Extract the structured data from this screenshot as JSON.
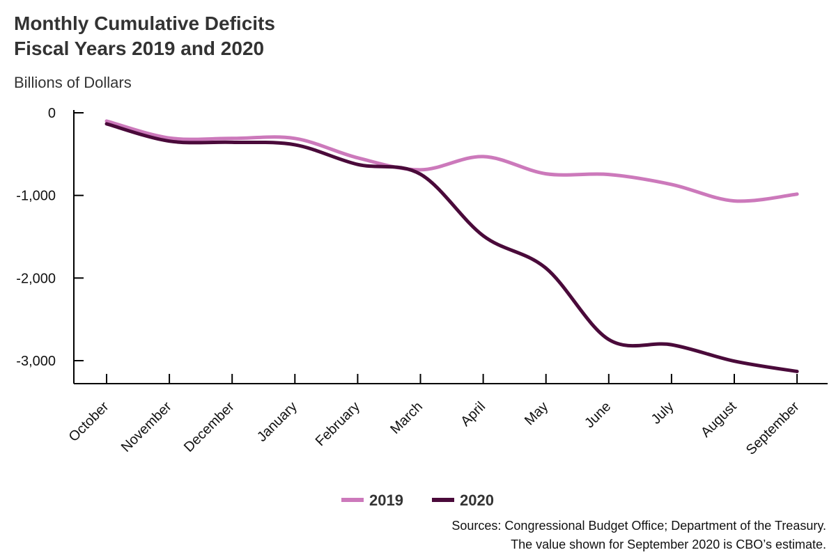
{
  "header": {
    "title_line1": "Monthly Cumulative Deficits",
    "title_line2": "Fiscal Years 2019 and 2020",
    "units": "Billions of Dollars"
  },
  "notes": {
    "line1": "Sources: Congressional Budget Office; Department of the Treasury.",
    "line2": "The value shown for September 2020 is CBO’s estimate."
  },
  "chart_data": {
    "type": "line",
    "categories": [
      "October",
      "November",
      "December",
      "January",
      "February",
      "March",
      "April",
      "May",
      "June",
      "July",
      "August",
      "September"
    ],
    "ylim": [
      -3300,
      0
    ],
    "yticks": [
      0,
      -1000,
      -2000,
      -3000
    ],
    "ytick_labels": [
      "0",
      "-1,000",
      "-2,000",
      "-3,000"
    ],
    "grid": false,
    "legend_position": "bottom-center",
    "series": [
      {
        "name": "2019",
        "color": "#cc79bb",
        "values": [
          -100,
          -305,
          -310,
          -310,
          -545,
          -690,
          -530,
          -738,
          -747,
          -867,
          -1067,
          -984
        ]
      },
      {
        "name": "2020",
        "color": "#4a0a3a",
        "values": [
          -134,
          -343,
          -357,
          -387,
          -625,
          -743,
          -1488,
          -1881,
          -2744,
          -2807,
          -3006,
          -3131
        ]
      }
    ]
  }
}
